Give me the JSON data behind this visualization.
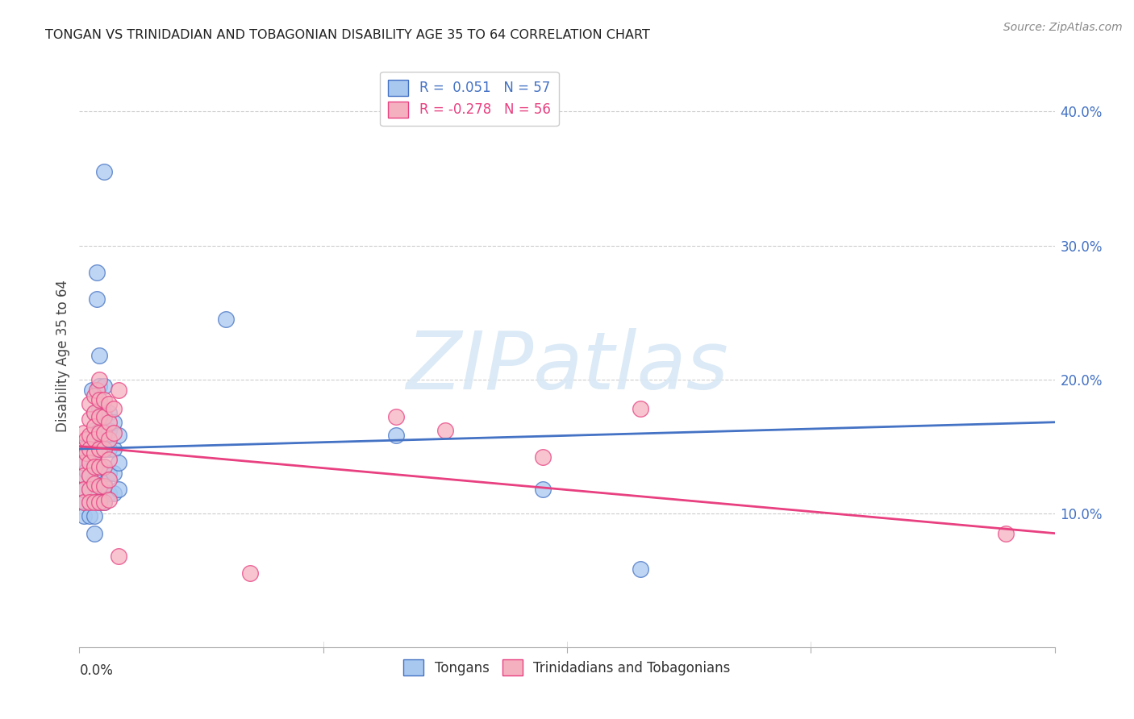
{
  "title": "TONGAN VS TRINIDADIAN AND TOBAGONIAN DISABILITY AGE 35 TO 64 CORRELATION CHART",
  "source": "Source: ZipAtlas.com",
  "ylabel": "Disability Age 35 to 64",
  "ylabel_right_ticks": [
    "40.0%",
    "30.0%",
    "20.0%",
    "10.0%"
  ],
  "ylabel_right_vals": [
    0.4,
    0.3,
    0.2,
    0.1
  ],
  "xmin": 0.0,
  "xmax": 0.2,
  "ymin": 0.0,
  "ymax": 0.435,
  "legend_label1": "Tongans",
  "legend_label2": "Trinidadians and Tobagonians",
  "legend_r1": "R =  0.051",
  "legend_n1": "N = 57",
  "legend_r2": "R = -0.278",
  "legend_n2": "N = 56",
  "color_blue": "#A8C8F0",
  "color_pink": "#F5B0C0",
  "line_blue": "#4472C4",
  "line_pink": "#E84080",
  "watermark_text": "ZIPatlas",
  "blue_points": [
    [
      0.001,
      0.15
    ],
    [
      0.001,
      0.138
    ],
    [
      0.001,
      0.128
    ],
    [
      0.001,
      0.118
    ],
    [
      0.001,
      0.108
    ],
    [
      0.001,
      0.098
    ],
    [
      0.0015,
      0.145
    ],
    [
      0.0015,
      0.132
    ],
    [
      0.002,
      0.152
    ],
    [
      0.002,
      0.14
    ],
    [
      0.002,
      0.128
    ],
    [
      0.002,
      0.118
    ],
    [
      0.002,
      0.108
    ],
    [
      0.002,
      0.098
    ],
    [
      0.0025,
      0.192
    ],
    [
      0.003,
      0.175
    ],
    [
      0.003,
      0.162
    ],
    [
      0.003,
      0.15
    ],
    [
      0.003,
      0.138
    ],
    [
      0.003,
      0.125
    ],
    [
      0.003,
      0.112
    ],
    [
      0.003,
      0.098
    ],
    [
      0.003,
      0.085
    ],
    [
      0.0035,
      0.28
    ],
    [
      0.0035,
      0.26
    ],
    [
      0.004,
      0.218
    ],
    [
      0.004,
      0.195
    ],
    [
      0.004,
      0.178
    ],
    [
      0.004,
      0.162
    ],
    [
      0.004,
      0.148
    ],
    [
      0.004,
      0.135
    ],
    [
      0.004,
      0.12
    ],
    [
      0.004,
      0.108
    ],
    [
      0.005,
      0.195
    ],
    [
      0.005,
      0.175
    ],
    [
      0.005,
      0.162
    ],
    [
      0.005,
      0.148
    ],
    [
      0.005,
      0.135
    ],
    [
      0.005,
      0.122
    ],
    [
      0.005,
      0.108
    ],
    [
      0.005,
      0.355
    ],
    [
      0.006,
      0.175
    ],
    [
      0.006,
      0.162
    ],
    [
      0.006,
      0.148
    ],
    [
      0.006,
      0.13
    ],
    [
      0.006,
      0.115
    ],
    [
      0.007,
      0.168
    ],
    [
      0.007,
      0.148
    ],
    [
      0.007,
      0.13
    ],
    [
      0.007,
      0.115
    ],
    [
      0.008,
      0.158
    ],
    [
      0.008,
      0.138
    ],
    [
      0.008,
      0.118
    ],
    [
      0.03,
      0.245
    ],
    [
      0.065,
      0.158
    ],
    [
      0.095,
      0.118
    ],
    [
      0.115,
      0.058
    ]
  ],
  "pink_points": [
    [
      0.001,
      0.16
    ],
    [
      0.001,
      0.148
    ],
    [
      0.001,
      0.138
    ],
    [
      0.001,
      0.128
    ],
    [
      0.001,
      0.118
    ],
    [
      0.001,
      0.108
    ],
    [
      0.0015,
      0.155
    ],
    [
      0.0015,
      0.145
    ],
    [
      0.002,
      0.182
    ],
    [
      0.002,
      0.17
    ],
    [
      0.002,
      0.158
    ],
    [
      0.002,
      0.148
    ],
    [
      0.002,
      0.138
    ],
    [
      0.002,
      0.128
    ],
    [
      0.002,
      0.118
    ],
    [
      0.002,
      0.108
    ],
    [
      0.003,
      0.188
    ],
    [
      0.003,
      0.175
    ],
    [
      0.003,
      0.165
    ],
    [
      0.003,
      0.155
    ],
    [
      0.003,
      0.145
    ],
    [
      0.003,
      0.135
    ],
    [
      0.003,
      0.122
    ],
    [
      0.003,
      0.108
    ],
    [
      0.0035,
      0.192
    ],
    [
      0.004,
      0.2
    ],
    [
      0.004,
      0.185
    ],
    [
      0.004,
      0.172
    ],
    [
      0.004,
      0.16
    ],
    [
      0.004,
      0.148
    ],
    [
      0.004,
      0.135
    ],
    [
      0.004,
      0.12
    ],
    [
      0.004,
      0.108
    ],
    [
      0.005,
      0.185
    ],
    [
      0.005,
      0.172
    ],
    [
      0.005,
      0.16
    ],
    [
      0.005,
      0.148
    ],
    [
      0.005,
      0.135
    ],
    [
      0.005,
      0.12
    ],
    [
      0.005,
      0.108
    ],
    [
      0.006,
      0.182
    ],
    [
      0.006,
      0.168
    ],
    [
      0.006,
      0.155
    ],
    [
      0.006,
      0.14
    ],
    [
      0.006,
      0.125
    ],
    [
      0.006,
      0.11
    ],
    [
      0.007,
      0.178
    ],
    [
      0.007,
      0.16
    ],
    [
      0.008,
      0.192
    ],
    [
      0.008,
      0.068
    ],
    [
      0.035,
      0.055
    ],
    [
      0.065,
      0.172
    ],
    [
      0.075,
      0.162
    ],
    [
      0.095,
      0.142
    ],
    [
      0.115,
      0.178
    ],
    [
      0.19,
      0.085
    ]
  ]
}
